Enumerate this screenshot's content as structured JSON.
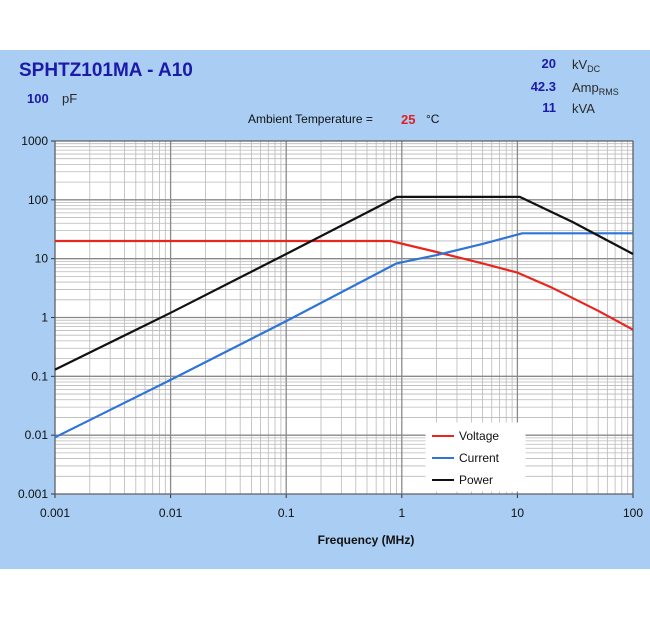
{
  "header": {
    "title": "SPHTZ101MA - A10",
    "capacitance": {
      "value": "100",
      "unit": "pF"
    },
    "specs": [
      {
        "value": "20",
        "unit": "kV",
        "unit_sub": "DC"
      },
      {
        "value": "42.3",
        "unit": "Amp",
        "unit_sub": "RMS"
      },
      {
        "value": "11",
        "unit": "kVA",
        "unit_sub": ""
      }
    ],
    "ambient": {
      "label": "Ambient Temperature =",
      "value": "25",
      "unit": "°C"
    }
  },
  "colors": {
    "panel_bg": "#a9cdf3",
    "plot_bg": "#ffffff",
    "voltage": "#e8261e",
    "current": "#2f74d8",
    "power": "#111111",
    "title": "#1c1aa8"
  },
  "chart_data": {
    "type": "line",
    "title": "SPHTZ101MA - A10",
    "xlabel": "Frequency (MHz)",
    "ylabel": "",
    "xscale": "log",
    "yscale": "log",
    "xlim": [
      0.001,
      100
    ],
    "ylim": [
      0.001,
      1000
    ],
    "x_ticks": [
      "0.001",
      "0.01",
      "0.1",
      "1",
      "10",
      "100"
    ],
    "y_ticks": [
      "0.001",
      "0.01",
      "0.1",
      "1",
      "10",
      "100",
      "1000"
    ],
    "grid": true,
    "legend_position": "lower-right",
    "series": [
      {
        "name": "Voltage",
        "color": "#e8261e",
        "x": [
          0.001,
          0.8,
          2,
          5,
          10,
          20,
          50,
          100
        ],
        "y": [
          20,
          20,
          13,
          8.3,
          5.8,
          3.2,
          1.3,
          0.62
        ]
      },
      {
        "name": "Current",
        "color": "#2f74d8",
        "x": [
          0.001,
          0.01,
          0.1,
          0.9,
          2,
          5,
          11,
          100
        ],
        "y": [
          0.0092,
          0.087,
          0.87,
          8.3,
          11.5,
          17.8,
          27,
          27
        ]
      },
      {
        "name": "Power",
        "color": "#111111",
        "x": [
          0.001,
          0.01,
          0.1,
          0.75,
          0.9,
          10.5,
          30,
          100
        ],
        "y": [
          0.13,
          1.2,
          12,
          92,
          112,
          112,
          42,
          12
        ]
      }
    ]
  }
}
